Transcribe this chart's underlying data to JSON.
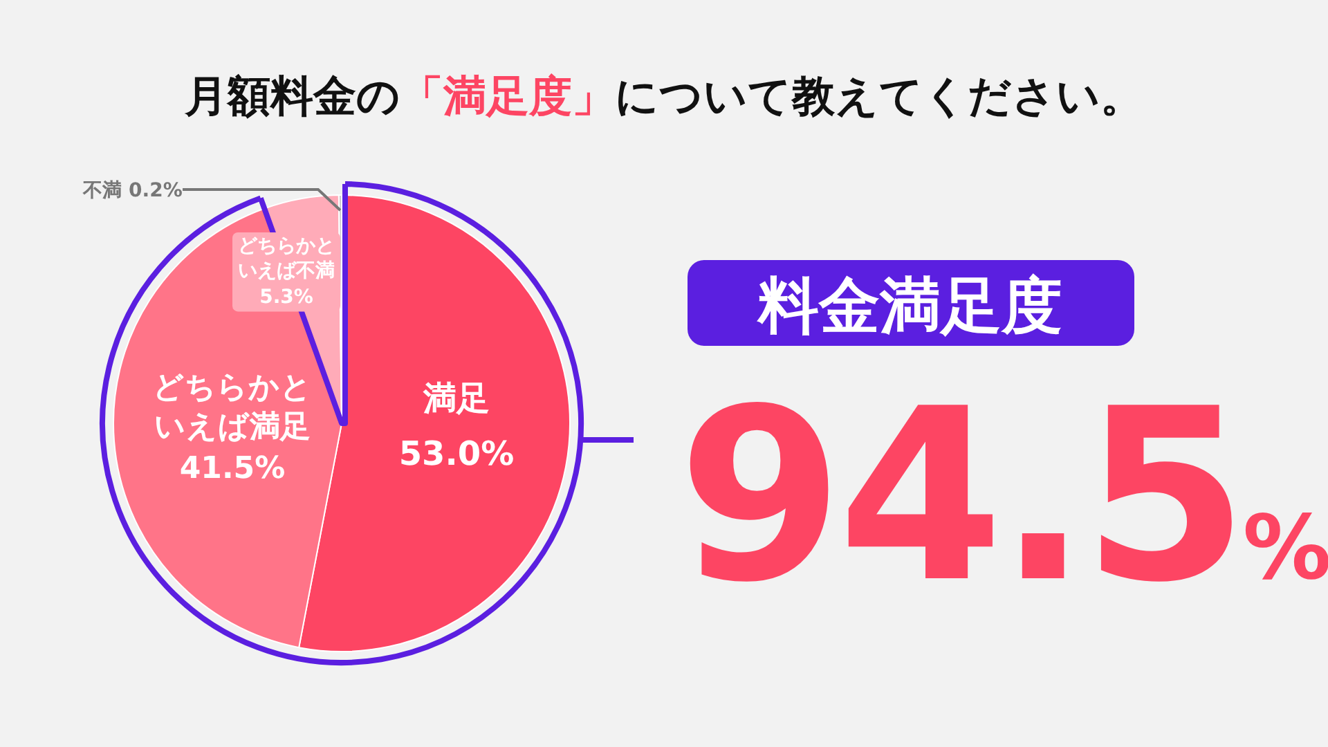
{
  "chart_data": {
    "type": "pie",
    "title": "月額料金の「満足度」について教えてください。",
    "categories": [
      "満足",
      "どちらかといえば満足",
      "どちらかといえば不満",
      "不満"
    ],
    "values": [
      53.0,
      41.5,
      5.3,
      0.2
    ],
    "colors": [
      "#fd4563",
      "#ff7488",
      "#ffabb8",
      "#cccccc"
    ],
    "value_labels": [
      "53.0%",
      "41.5%",
      "5.3%",
      "0.2%"
    ],
    "annotations": [
      "料金満足度",
      "94.5%"
    ]
  }
}
